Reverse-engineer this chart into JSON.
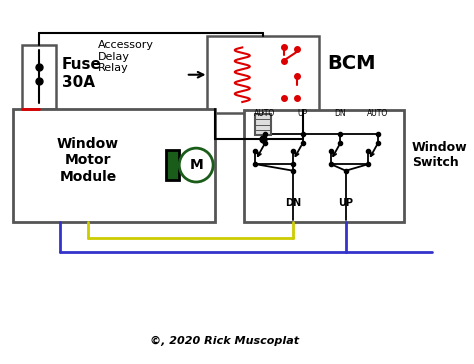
{
  "title": "©, 2020 Rick Muscoplat",
  "bg_color": "#ffffff",
  "line_color": "#000000",
  "gray_color": "#555555",
  "red_wire": "#dd0000",
  "blue_wire": "#3333cc",
  "yellow_wire": "#cccc00",
  "green_dark": "#1a5c1a",
  "fuse_label": "Fuse\n30A",
  "motor_label": "Window\nMotor\nModule",
  "bcm_label": "BCM",
  "relay_label": "Accessory\nDelay\nRelay",
  "switch_label": "Window\nSwitch",
  "motor_symbol": "M",
  "fig_w": 4.74,
  "fig_h": 3.64,
  "dpi": 100
}
